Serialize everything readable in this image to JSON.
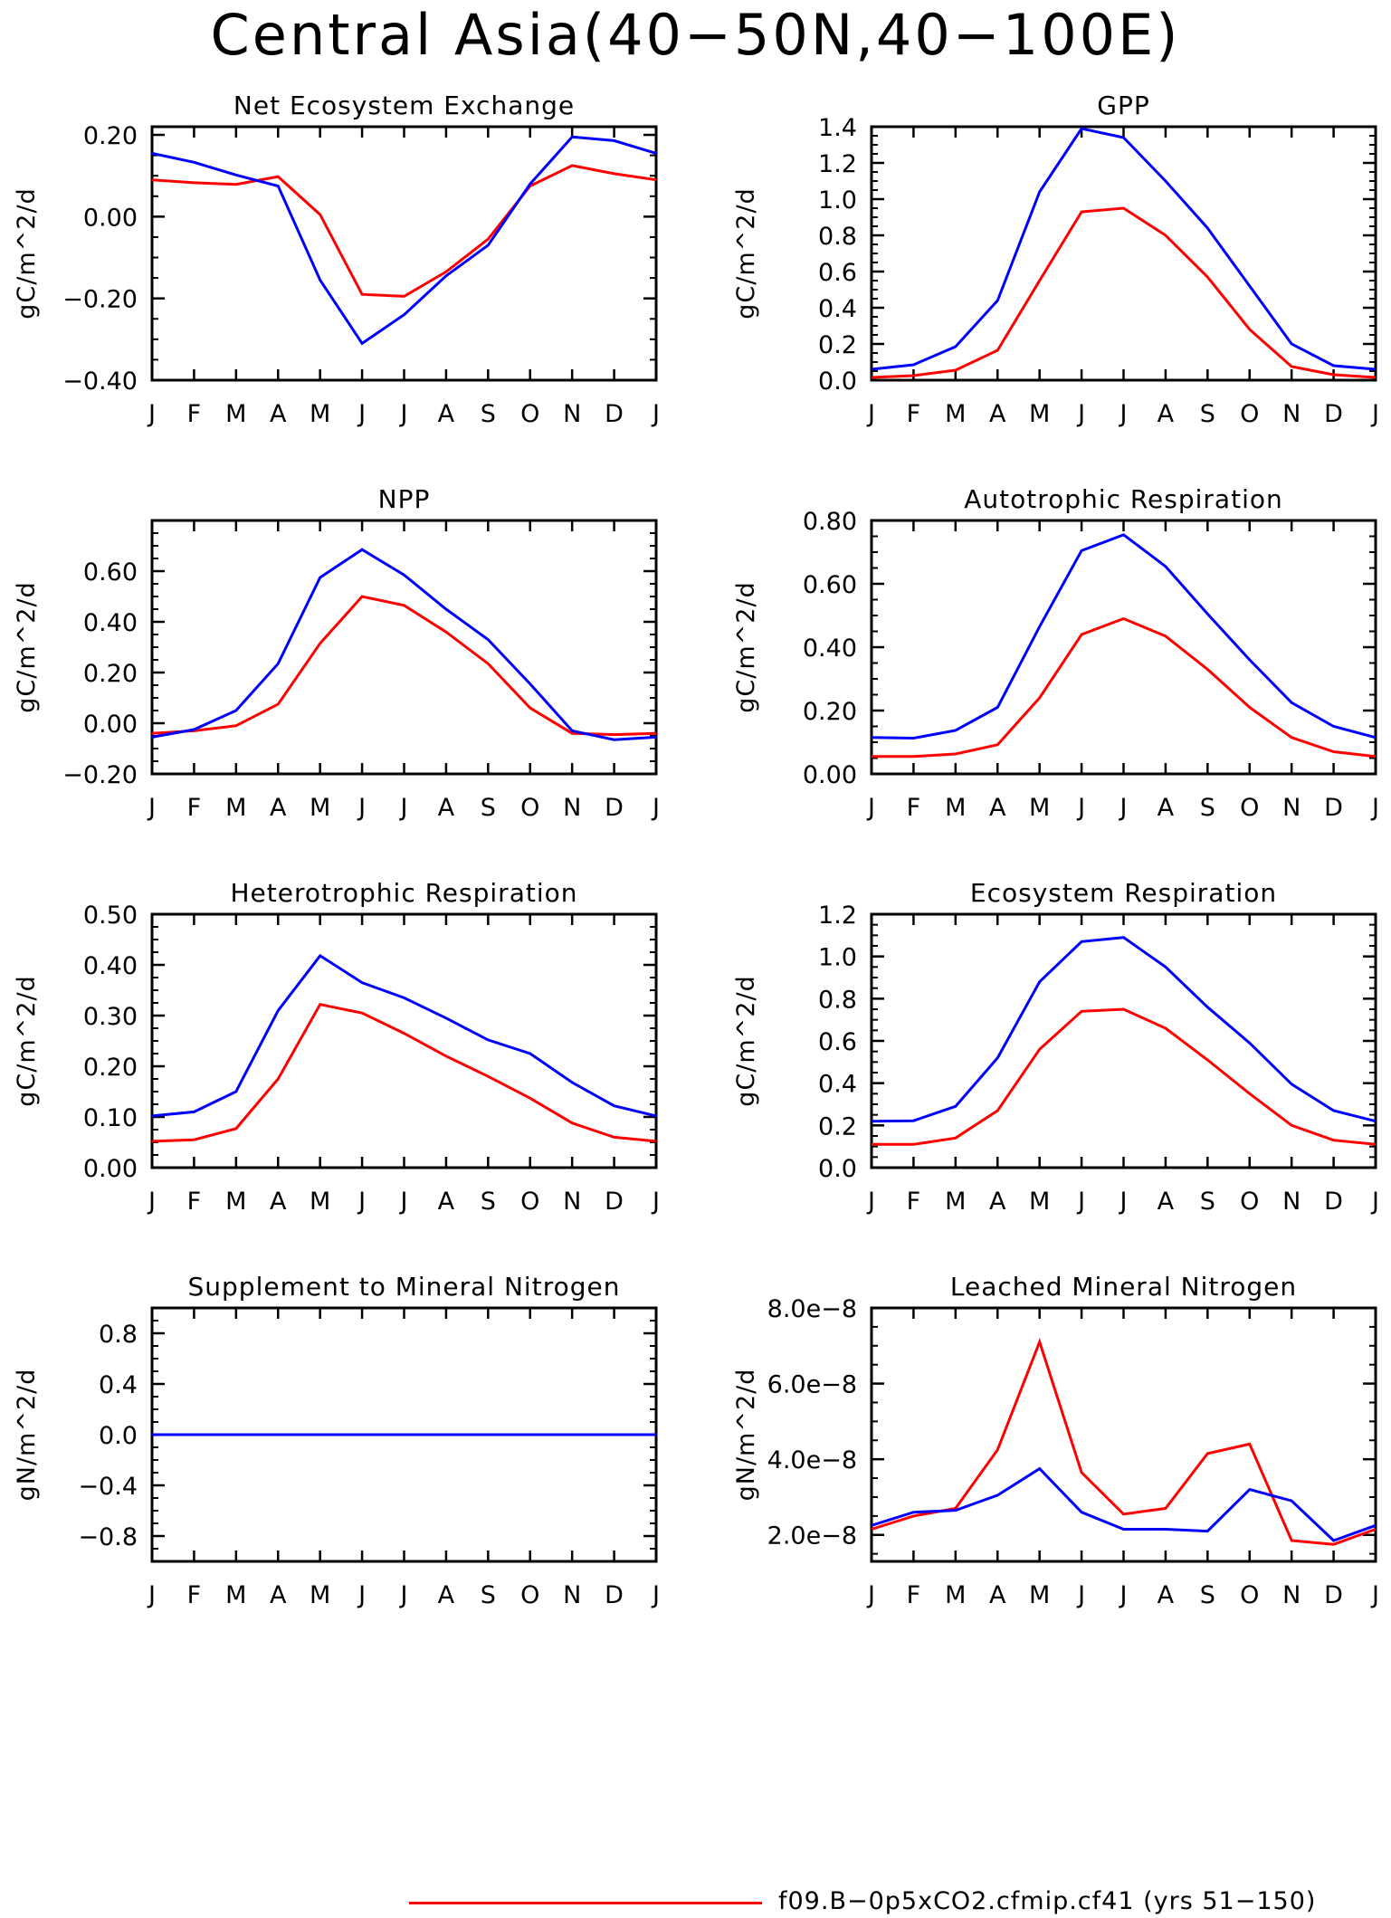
{
  "page": {
    "title": "Central Asia(40−50N,40−100E)"
  },
  "legend": {
    "label": "f09.B−0p5xCO2.cfmip.cf41 (yrs 51−150)",
    "color": "#ff0000"
  },
  "colors": {
    "red": "#ff0000",
    "blue": "#0000ff"
  },
  "chart_data": [
    {
      "type": "line",
      "title": "Net Ecosystem Exchange",
      "ylabel": "gC/m^2/d",
      "ylim": [
        -0.4,
        0.22
      ],
      "yticks": [
        -0.4,
        -0.2,
        0.0,
        0.2
      ],
      "ytick_labels": [
        "−0.40",
        "−0.20",
        "0.00",
        "0.20"
      ],
      "categories": [
        "J",
        "F",
        "M",
        "A",
        "M",
        "J",
        "J",
        "A",
        "S",
        "O",
        "N",
        "D",
        "J"
      ],
      "series": [
        {
          "color": "#ff0000",
          "values": [
            0.09,
            0.083,
            0.079,
            0.098,
            0.005,
            -0.19,
            -0.195,
            -0.135,
            -0.055,
            0.075,
            0.125,
            0.105,
            0.09
          ]
        },
        {
          "color": "#0000ff",
          "values": [
            0.155,
            0.133,
            0.102,
            0.075,
            -0.155,
            -0.31,
            -0.24,
            -0.145,
            -0.07,
            0.08,
            0.195,
            0.186,
            0.155
          ]
        }
      ]
    },
    {
      "type": "line",
      "title": "GPP",
      "ylabel": "gC/m^2/d",
      "ylim": [
        0,
        1.4
      ],
      "yticks": [
        0,
        0.2,
        0.4,
        0.6,
        0.8,
        1.0,
        1.2,
        1.4
      ],
      "ytick_labels": [
        "0.0",
        "0.2",
        "0.4",
        "0.6",
        "0.8",
        "1.0",
        "1.2",
        "1.4"
      ],
      "categories": [
        "J",
        "F",
        "M",
        "A",
        "M",
        "J",
        "J",
        "A",
        "S",
        "O",
        "N",
        "D",
        "J"
      ],
      "series": [
        {
          "color": "#ff0000",
          "values": [
            0.015,
            0.025,
            0.055,
            0.165,
            0.55,
            0.93,
            0.95,
            0.8,
            0.57,
            0.28,
            0.075,
            0.03,
            0.015
          ]
        },
        {
          "color": "#0000ff",
          "values": [
            0.06,
            0.085,
            0.185,
            0.44,
            1.04,
            1.39,
            1.34,
            1.1,
            0.84,
            0.52,
            0.2,
            0.08,
            0.06
          ]
        }
      ]
    },
    {
      "type": "line",
      "title": "NPP",
      "ylabel": "gC/m^2/d",
      "ylim": [
        -0.2,
        0.8
      ],
      "yticks": [
        -0.2,
        0.0,
        0.2,
        0.4,
        0.6
      ],
      "ytick_labels": [
        "−0.20",
        "0.00",
        "0.20",
        "0.40",
        "0.60"
      ],
      "categories": [
        "J",
        "F",
        "M",
        "A",
        "M",
        "J",
        "J",
        "A",
        "S",
        "O",
        "N",
        "D",
        "J"
      ],
      "series": [
        {
          "color": "#ff0000",
          "values": [
            -0.04,
            -0.03,
            -0.01,
            0.075,
            0.315,
            0.5,
            0.465,
            0.36,
            0.235,
            0.06,
            -0.04,
            -0.045,
            -0.04
          ]
        },
        {
          "color": "#0000ff",
          "values": [
            -0.055,
            -0.025,
            0.05,
            0.235,
            0.575,
            0.685,
            0.585,
            0.45,
            0.33,
            0.155,
            -0.03,
            -0.065,
            -0.055
          ]
        }
      ]
    },
    {
      "type": "line",
      "title": "Autotrophic Respiration",
      "ylabel": "gC/m^2/d",
      "ylim": [
        0,
        0.8
      ],
      "yticks": [
        0,
        0.2,
        0.4,
        0.6,
        0.8
      ],
      "ytick_labels": [
        "0.00",
        "0.20",
        "0.40",
        "0.60",
        "0.80"
      ],
      "categories": [
        "J",
        "F",
        "M",
        "A",
        "M",
        "J",
        "J",
        "A",
        "S",
        "O",
        "N",
        "D",
        "J"
      ],
      "series": [
        {
          "color": "#ff0000",
          "values": [
            0.055,
            0.055,
            0.063,
            0.092,
            0.24,
            0.44,
            0.49,
            0.435,
            0.33,
            0.21,
            0.115,
            0.07,
            0.055
          ]
        },
        {
          "color": "#0000ff",
          "values": [
            0.115,
            0.113,
            0.137,
            0.21,
            0.465,
            0.705,
            0.755,
            0.655,
            0.505,
            0.36,
            0.225,
            0.15,
            0.115
          ]
        }
      ]
    },
    {
      "type": "line",
      "title": "Heterotrophic Respiration",
      "ylabel": "gC/m^2/d",
      "ylim": [
        0,
        0.5
      ],
      "yticks": [
        0,
        0.1,
        0.2,
        0.3,
        0.4,
        0.5
      ],
      "ytick_labels": [
        "0.00",
        "0.10",
        "0.20",
        "0.30",
        "0.40",
        "0.50"
      ],
      "categories": [
        "J",
        "F",
        "M",
        "A",
        "M",
        "J",
        "J",
        "A",
        "S",
        "O",
        "N",
        "D",
        "J"
      ],
      "series": [
        {
          "color": "#ff0000",
          "values": [
            0.052,
            0.055,
            0.077,
            0.175,
            0.322,
            0.305,
            0.265,
            0.22,
            0.18,
            0.137,
            0.088,
            0.06,
            0.052
          ]
        },
        {
          "color": "#0000ff",
          "values": [
            0.102,
            0.11,
            0.15,
            0.31,
            0.418,
            0.365,
            0.335,
            0.295,
            0.252,
            0.225,
            0.168,
            0.122,
            0.102
          ]
        }
      ]
    },
    {
      "type": "line",
      "title": "Ecosystem Respiration",
      "ylabel": "gC/m^2/d",
      "ylim": [
        0,
        1.2
      ],
      "yticks": [
        0,
        0.2,
        0.4,
        0.6,
        0.8,
        1.0,
        1.2
      ],
      "ytick_labels": [
        "0.0",
        "0.2",
        "0.4",
        "0.6",
        "0.8",
        "1.0",
        "1.2"
      ],
      "categories": [
        "J",
        "F",
        "M",
        "A",
        "M",
        "J",
        "J",
        "A",
        "S",
        "O",
        "N",
        "D",
        "J"
      ],
      "series": [
        {
          "color": "#ff0000",
          "values": [
            0.11,
            0.11,
            0.14,
            0.27,
            0.56,
            0.74,
            0.75,
            0.66,
            0.51,
            0.35,
            0.2,
            0.13,
            0.11
          ]
        },
        {
          "color": "#0000ff",
          "values": [
            0.22,
            0.222,
            0.29,
            0.52,
            0.88,
            1.07,
            1.09,
            0.95,
            0.76,
            0.59,
            0.395,
            0.27,
            0.22
          ]
        }
      ]
    },
    {
      "type": "line",
      "title": "Supplement to Mineral Nitrogen",
      "ylabel": "gN/m^2/d",
      "ylim": [
        -1.0,
        1.0
      ],
      "yticks": [
        -0.8,
        -0.4,
        0.0,
        0.4,
        0.8
      ],
      "ytick_labels": [
        "−0.8",
        "−0.4",
        "0.0",
        "0.4",
        "0.8"
      ],
      "categories": [
        "J",
        "F",
        "M",
        "A",
        "M",
        "J",
        "J",
        "A",
        "S",
        "O",
        "N",
        "D",
        "J"
      ],
      "series": [
        {
          "color": "#ff0000",
          "values": [
            0,
            0,
            0,
            0,
            0,
            0,
            0,
            0,
            0,
            0,
            0,
            0,
            0
          ]
        },
        {
          "color": "#0000ff",
          "values": [
            0,
            0,
            0,
            0,
            0,
            0,
            0,
            0,
            0,
            0,
            0,
            0,
            0
          ]
        }
      ]
    },
    {
      "type": "line",
      "title": "Leached Mineral Nitrogen",
      "ylabel": "gN/m^2/d",
      "ylim": [
        1.3e-08,
        8e-08
      ],
      "yticks": [
        2e-08,
        4e-08,
        6e-08,
        8e-08
      ],
      "ytick_labels": [
        "2.0e−8",
        "4.0e−8",
        "6.0e−8",
        "8.0e−8"
      ],
      "categories": [
        "J",
        "F",
        "M",
        "A",
        "M",
        "J",
        "J",
        "A",
        "S",
        "O",
        "N",
        "D",
        "J"
      ],
      "series": [
        {
          "color": "#ff0000",
          "values": [
            2.15e-08,
            2.5e-08,
            2.7e-08,
            4.25e-08,
            7.1e-08,
            3.65e-08,
            2.55e-08,
            2.7e-08,
            4.15e-08,
            4.4e-08,
            1.85e-08,
            1.75e-08,
            2.15e-08
          ]
        },
        {
          "color": "#0000ff",
          "values": [
            2.25e-08,
            2.6e-08,
            2.65e-08,
            3.05e-08,
            3.75e-08,
            2.6e-08,
            2.15e-08,
            2.15e-08,
            2.1e-08,
            3.2e-08,
            2.9e-08,
            1.85e-08,
            2.25e-08
          ]
        }
      ]
    }
  ]
}
